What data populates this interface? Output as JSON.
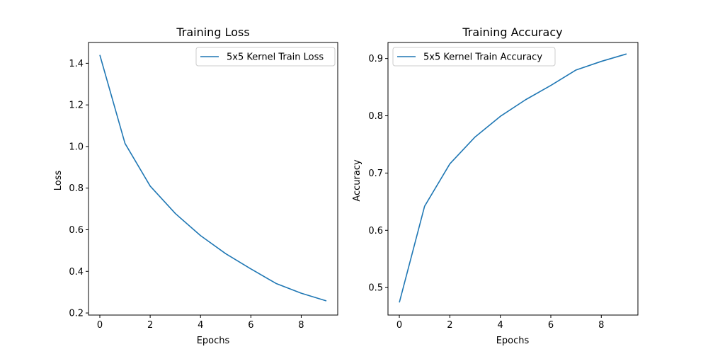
{
  "chart_data": [
    {
      "type": "line",
      "title": "Training Loss",
      "xlabel": "Epochs",
      "ylabel": "Loss",
      "xlim": [
        -0.45,
        9.45
      ],
      "ylim": [
        0.19,
        1.5
      ],
      "xticks": [
        0,
        2,
        4,
        6,
        8
      ],
      "yticks": [
        0.2,
        0.4,
        0.6,
        0.8,
        1.0,
        1.2,
        1.4
      ],
      "ytick_decimals": 1,
      "grid": false,
      "legend_position": "top-right",
      "series": [
        {
          "name": "5x5 Kernel Train Loss",
          "color": "#1f77b4",
          "x": [
            0,
            1,
            2,
            3,
            4,
            5,
            6,
            7,
            8,
            9
          ],
          "y": [
            1.44,
            1.015,
            0.81,
            0.678,
            0.572,
            0.485,
            0.412,
            0.342,
            0.295,
            0.258
          ]
        }
      ]
    },
    {
      "type": "line",
      "title": "Training Accuracy",
      "xlabel": "Epochs",
      "ylabel": "Accuracy",
      "xlim": [
        -0.45,
        9.45
      ],
      "ylim": [
        0.452,
        0.928
      ],
      "xticks": [
        0,
        2,
        4,
        6,
        8
      ],
      "yticks": [
        0.5,
        0.6,
        0.7,
        0.8,
        0.9
      ],
      "ytick_decimals": 1,
      "grid": false,
      "legend_position": "top-left",
      "series": [
        {
          "name": "5x5 Kernel Train Accuracy",
          "color": "#1f77b4",
          "x": [
            0,
            1,
            2,
            3,
            4,
            5,
            6,
            7,
            8,
            9
          ],
          "y": [
            0.474,
            0.642,
            0.716,
            0.763,
            0.799,
            0.828,
            0.853,
            0.88,
            0.895,
            0.908
          ]
        }
      ]
    }
  ]
}
